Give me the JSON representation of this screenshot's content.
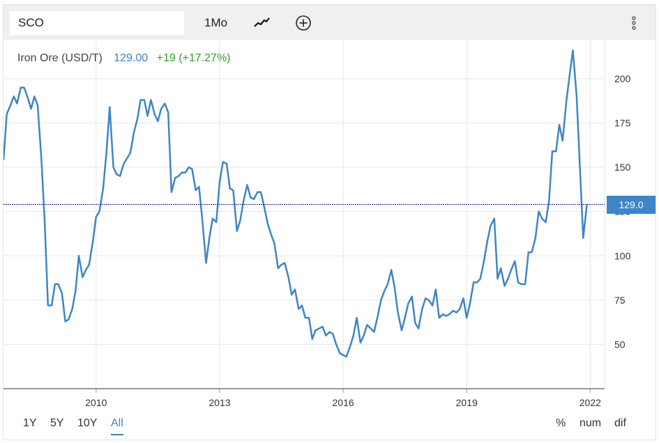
{
  "toolbar": {
    "symbol_value": "SCO",
    "period_label": "1Mo",
    "chart_type_icon": "line-chart-icon",
    "compare_icon": "plus-circle-icon",
    "menu_icon": "vertical-ellipsis-icon"
  },
  "info": {
    "name": "Iron Ore (USD/T)",
    "price": "129.00",
    "change": "+19 (+17.27%)"
  },
  "current_value_label": "129.0",
  "range_buttons": [
    "1Y",
    "5Y",
    "10Y",
    "All"
  ],
  "active_range": "All",
  "mode_buttons": [
    "%",
    "num",
    "dif"
  ],
  "colors": {
    "line": "#3d85c6",
    "price": "#3f7fc1",
    "change": "#2ca02c",
    "current_line": "#1c1c9c"
  },
  "chart_data": {
    "type": "line",
    "title": "",
    "xlabel": "",
    "ylabel": "",
    "x_unit": "year",
    "xlim": [
      2007.75,
      2022.35
    ],
    "ylim": [
      25,
      222
    ],
    "x_ticks": [
      "2010",
      "2013",
      "2016",
      "2019",
      "2022"
    ],
    "y_ticks": [
      "50",
      "75",
      "100",
      "125",
      "150",
      "175",
      "200"
    ],
    "grid": true,
    "current_value": 129.0,
    "series": [
      {
        "values": [
          [
            2007.75,
            154
          ],
          [
            2007.83,
            180
          ],
          [
            2007.92,
            185
          ],
          [
            2008.0,
            190
          ],
          [
            2008.08,
            186
          ],
          [
            2008.17,
            195
          ],
          [
            2008.25,
            195
          ],
          [
            2008.33,
            190
          ],
          [
            2008.42,
            183
          ],
          [
            2008.5,
            190
          ],
          [
            2008.58,
            185
          ],
          [
            2008.67,
            155
          ],
          [
            2008.75,
            120
          ],
          [
            2008.83,
            72
          ],
          [
            2008.92,
            72
          ],
          [
            2009.0,
            84
          ],
          [
            2009.08,
            84
          ],
          [
            2009.17,
            79
          ],
          [
            2009.25,
            63
          ],
          [
            2009.33,
            64
          ],
          [
            2009.42,
            70
          ],
          [
            2009.5,
            80
          ],
          [
            2009.58,
            100
          ],
          [
            2009.67,
            88
          ],
          [
            2009.75,
            92
          ],
          [
            2009.83,
            95
          ],
          [
            2009.92,
            108
          ],
          [
            2010.0,
            122
          ],
          [
            2010.08,
            125
          ],
          [
            2010.17,
            138
          ],
          [
            2010.25,
            158
          ],
          [
            2010.33,
            184
          ],
          [
            2010.42,
            150
          ],
          [
            2010.5,
            146
          ],
          [
            2010.58,
            145
          ],
          [
            2010.67,
            152
          ],
          [
            2010.75,
            155
          ],
          [
            2010.83,
            158
          ],
          [
            2010.92,
            170
          ],
          [
            2011.0,
            177
          ],
          [
            2011.08,
            188
          ],
          [
            2011.17,
            188
          ],
          [
            2011.25,
            179
          ],
          [
            2011.33,
            188
          ],
          [
            2011.42,
            180
          ],
          [
            2011.5,
            176
          ],
          [
            2011.58,
            183
          ],
          [
            2011.67,
            186
          ],
          [
            2011.75,
            181
          ],
          [
            2011.83,
            136
          ],
          [
            2011.92,
            144
          ],
          [
            2012.0,
            145
          ],
          [
            2012.08,
            147
          ],
          [
            2012.17,
            147
          ],
          [
            2012.25,
            150
          ],
          [
            2012.33,
            149
          ],
          [
            2012.42,
            137
          ],
          [
            2012.5,
            139
          ],
          [
            2012.58,
            120
          ],
          [
            2012.67,
            96
          ],
          [
            2012.75,
            110
          ],
          [
            2012.83,
            121
          ],
          [
            2012.92,
            119
          ],
          [
            2013.0,
            142
          ],
          [
            2013.08,
            153
          ],
          [
            2013.17,
            152
          ],
          [
            2013.25,
            138
          ],
          [
            2013.33,
            137
          ],
          [
            2013.42,
            114
          ],
          [
            2013.5,
            120
          ],
          [
            2013.58,
            131
          ],
          [
            2013.67,
            140
          ],
          [
            2013.75,
            133
          ],
          [
            2013.83,
            132
          ],
          [
            2013.92,
            136
          ],
          [
            2014.0,
            136
          ],
          [
            2014.08,
            128
          ],
          [
            2014.17,
            118
          ],
          [
            2014.25,
            112
          ],
          [
            2014.33,
            107
          ],
          [
            2014.42,
            93
          ],
          [
            2014.5,
            95
          ],
          [
            2014.58,
            96
          ],
          [
            2014.67,
            88
          ],
          [
            2014.75,
            78
          ],
          [
            2014.83,
            81
          ],
          [
            2014.92,
            70
          ],
          [
            2015.0,
            72
          ],
          [
            2015.08,
            65
          ],
          [
            2015.17,
            65
          ],
          [
            2015.25,
            53
          ],
          [
            2015.33,
            58
          ],
          [
            2015.42,
            59
          ],
          [
            2015.5,
            60
          ],
          [
            2015.58,
            55
          ],
          [
            2015.67,
            57
          ],
          [
            2015.75,
            56
          ],
          [
            2015.83,
            50
          ],
          [
            2015.92,
            45
          ],
          [
            2016.0,
            44
          ],
          [
            2016.08,
            43
          ],
          [
            2016.17,
            49
          ],
          [
            2016.25,
            55
          ],
          [
            2016.33,
            65
          ],
          [
            2016.42,
            51
          ],
          [
            2016.5,
            55
          ],
          [
            2016.58,
            61
          ],
          [
            2016.67,
            59
          ],
          [
            2016.75,
            57
          ],
          [
            2016.83,
            65
          ],
          [
            2016.92,
            75
          ],
          [
            2017.0,
            80
          ],
          [
            2017.08,
            84
          ],
          [
            2017.17,
            92
          ],
          [
            2017.25,
            82
          ],
          [
            2017.33,
            68
          ],
          [
            2017.42,
            58
          ],
          [
            2017.5,
            65
          ],
          [
            2017.58,
            73
          ],
          [
            2017.67,
            77
          ],
          [
            2017.75,
            62
          ],
          [
            2017.83,
            59
          ],
          [
            2017.92,
            70
          ],
          [
            2018.0,
            76
          ],
          [
            2018.08,
            75
          ],
          [
            2018.17,
            72
          ],
          [
            2018.25,
            81
          ],
          [
            2018.33,
            65
          ],
          [
            2018.42,
            67
          ],
          [
            2018.5,
            66
          ],
          [
            2018.58,
            67
          ],
          [
            2018.67,
            69
          ],
          [
            2018.75,
            68
          ],
          [
            2018.83,
            70
          ],
          [
            2018.92,
            76
          ],
          [
            2019.0,
            65
          ],
          [
            2019.08,
            73
          ],
          [
            2019.17,
            85
          ],
          [
            2019.25,
            85
          ],
          [
            2019.33,
            87
          ],
          [
            2019.42,
            97
          ],
          [
            2019.5,
            108
          ],
          [
            2019.58,
            117
          ],
          [
            2019.67,
            121
          ],
          [
            2019.75,
            87
          ],
          [
            2019.83,
            93
          ],
          [
            2019.92,
            83
          ],
          [
            2020.0,
            87
          ],
          [
            2020.08,
            92
          ],
          [
            2020.17,
            97
          ],
          [
            2020.25,
            85
          ],
          [
            2020.33,
            84
          ],
          [
            2020.42,
            84
          ],
          [
            2020.5,
            102
          ],
          [
            2020.58,
            102
          ],
          [
            2020.67,
            110
          ],
          [
            2020.75,
            125
          ],
          [
            2020.83,
            121
          ],
          [
            2020.92,
            119
          ],
          [
            2021.0,
            131
          ],
          [
            2021.08,
            159
          ],
          [
            2021.17,
            159
          ],
          [
            2021.25,
            174
          ],
          [
            2021.33,
            165
          ],
          [
            2021.42,
            187
          ],
          [
            2021.5,
            202
          ],
          [
            2021.58,
            216
          ],
          [
            2021.67,
            190
          ],
          [
            2021.75,
            150
          ],
          [
            2021.83,
            110
          ],
          [
            2021.92,
            129
          ]
        ]
      }
    ]
  }
}
